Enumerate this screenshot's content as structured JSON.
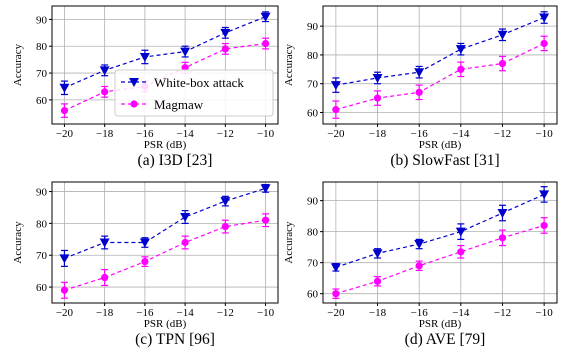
{
  "chart_data": [
    {
      "type": "line",
      "panel": "a",
      "caption": "(a) I3D [23]",
      "xlabel": "PSR (dB)",
      "ylabel": "Accuracy",
      "x": [
        -20,
        -18,
        -16,
        -14,
        -12,
        -10
      ],
      "xticks": [
        "−20",
        "−18",
        "−16",
        "−14",
        "−12",
        "−10"
      ],
      "yticks": [
        60,
        70,
        80,
        90
      ],
      "ylim": [
        51,
        95
      ],
      "grid": true,
      "legend": "center-right",
      "series": [
        {
          "name": "White-box attack",
          "color": "#0000cc",
          "marker": "triangle-down",
          "values": [
            64.5,
            71,
            76,
            78,
            85,
            91
          ],
          "errors": [
            2.5,
            2,
            2.5,
            2,
            2,
            1.8
          ]
        },
        {
          "name": "Magmaw",
          "color": "#ff00ff",
          "marker": "circle",
          "values": [
            56,
            63,
            65,
            72,
            79,
            81
          ],
          "errors": [
            2.5,
            2,
            2,
            2,
            2,
            2
          ]
        }
      ]
    },
    {
      "type": "line",
      "panel": "b",
      "caption": "(b) SlowFast [31]",
      "xlabel": "PSR (dB)",
      "ylabel": "Accuracy",
      "x": [
        -20,
        -18,
        -16,
        -14,
        -12,
        -10
      ],
      "xticks": [
        "−20",
        "−18",
        "−16",
        "−14",
        "−12",
        "−10"
      ],
      "yticks": [
        60,
        70,
        80,
        90
      ],
      "ylim": [
        56,
        97
      ],
      "grid": true,
      "series": [
        {
          "name": "White-box attack",
          "color": "#0000cc",
          "marker": "triangle-down",
          "values": [
            69.5,
            72,
            74,
            82,
            87,
            93
          ],
          "errors": [
            2.5,
            2,
            2,
            2,
            2,
            2
          ]
        },
        {
          "name": "Magmaw",
          "color": "#ff00ff",
          "marker": "circle",
          "values": [
            61,
            65,
            67,
            75,
            77,
            84
          ],
          "errors": [
            3,
            2.5,
            2.5,
            2.5,
            2.5,
            2.5
          ]
        }
      ]
    },
    {
      "type": "line",
      "panel": "c",
      "caption": "(c) TPN [96]",
      "xlabel": "PSR (dB)",
      "ylabel": "Accuracy",
      "x": [
        -20,
        -18,
        -16,
        -14,
        -12,
        -10
      ],
      "xticks": [
        "−20",
        "−18",
        "−16",
        "−14",
        "−12",
        "−10"
      ],
      "yticks": [
        60,
        70,
        80,
        90
      ],
      "ylim": [
        55,
        93
      ],
      "grid": true,
      "series": [
        {
          "name": "White-box attack",
          "color": "#0000cc",
          "marker": "triangle-down",
          "values": [
            69,
            74,
            74,
            82,
            87,
            91
          ],
          "errors": [
            2.5,
            2,
            1.5,
            2,
            1.5,
            1.2
          ]
        },
        {
          "name": "Magmaw",
          "color": "#ff00ff",
          "marker": "circle",
          "values": [
            59,
            63,
            68,
            74,
            79,
            81
          ],
          "errors": [
            2.5,
            2.5,
            1.5,
            2,
            2,
            2
          ]
        }
      ]
    },
    {
      "type": "line",
      "panel": "d",
      "caption": "(d) AVE [79]",
      "xlabel": "PSR (dB)",
      "ylabel": "Accuracy",
      "x": [
        -20,
        -18,
        -16,
        -14,
        -12,
        -10
      ],
      "xticks": [
        "−20",
        "−18",
        "−16",
        "−14",
        "−12",
        "−10"
      ],
      "yticks": [
        60,
        70,
        80,
        90
      ],
      "ylim": [
        57,
        96
      ],
      "grid": true,
      "series": [
        {
          "name": "White-box attack",
          "color": "#0000cc",
          "marker": "triangle-down",
          "values": [
            68.5,
            73,
            76,
            80,
            86,
            92
          ],
          "errors": [
            1.2,
            1.5,
            1.5,
            2.5,
            2.5,
            2.5
          ]
        },
        {
          "name": "Magmaw",
          "color": "#ff00ff",
          "marker": "circle",
          "values": [
            60,
            64,
            69,
            73.5,
            78,
            82
          ],
          "errors": [
            1.5,
            1.5,
            1.5,
            2,
            2.5,
            2.5
          ]
        }
      ]
    }
  ]
}
